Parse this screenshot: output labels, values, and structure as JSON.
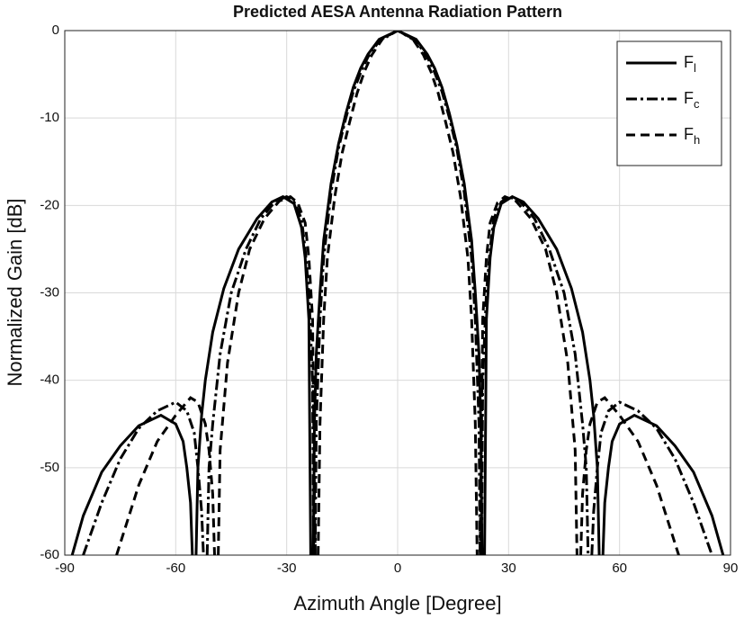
{
  "chart_data": {
    "type": "line",
    "title": "Predicted AESA Antenna Radiation Pattern",
    "x_label": "Azimuth Angle [Degree]",
    "y_label": "Normalized Gain [dB]",
    "xlim": [
      -90,
      90
    ],
    "xticks": [
      -90,
      -60,
      -30,
      0,
      30,
      60,
      90
    ],
    "ylim": [
      -60,
      0
    ],
    "yticks": [
      -60,
      -50,
      -40,
      -30,
      -20,
      -10,
      0
    ],
    "grid": true,
    "legend": "upper right",
    "series": [
      {
        "name": "Fl",
        "color": "#000000",
        "dash": "solid",
        "x": [
          -88,
          -85,
          -80,
          -75,
          -70,
          -64,
          -60,
          -58,
          -57,
          -56,
          -55.5,
          -55,
          -54.5,
          -54,
          -53,
          -52,
          -50,
          -47,
          -43,
          -38,
          -34,
          -31,
          -28,
          -26,
          -25,
          -24,
          -23.5,
          -23.2,
          -22.8,
          -22.5,
          -22,
          -21,
          -20,
          -18,
          -16,
          -14,
          -12,
          -10,
          -8,
          -5,
          0,
          5,
          8,
          10,
          12,
          14,
          16,
          18,
          20,
          21,
          22,
          22.5,
          22.8,
          23.2,
          23.5,
          24,
          25,
          26,
          28,
          31,
          34,
          38,
          43,
          47,
          50,
          52,
          53,
          54,
          54.5,
          55,
          55.5,
          56,
          57,
          58,
          60,
          64,
          70,
          75,
          80,
          85,
          88
        ],
        "values": [
          -60,
          -55.5,
          -50.5,
          -47.5,
          -45.2,
          -44,
          -45,
          -47,
          -50,
          -54,
          -60,
          null,
          -60,
          -50,
          -44,
          -40,
          -34.5,
          -29.5,
          -25,
          -21.5,
          -19.6,
          -19,
          -19.8,
          -22.5,
          -26,
          -33,
          -60,
          null,
          -60,
          -45,
          -37,
          -30,
          -24,
          -17.5,
          -13,
          -9.5,
          -6.5,
          -4.3,
          -2.7,
          -1,
          0,
          -1,
          -2.7,
          -4.3,
          -6.5,
          -9.5,
          -13,
          -17.5,
          -24,
          -30,
          -37,
          -45,
          -60,
          null,
          -60,
          -33,
          -26,
          -22.5,
          -19.8,
          -19,
          -19.6,
          -21.5,
          -25,
          -29.5,
          -34.5,
          -40,
          -44,
          -50,
          -60,
          null,
          -60,
          -54,
          -50,
          -47,
          -45,
          -44,
          -45.2,
          -47.5,
          -50.5,
          -55.5,
          -60
        ]
      },
      {
        "name": "Fc",
        "color": "#000000",
        "dash": "dashdot",
        "x": [
          -85,
          -80,
          -75,
          -70,
          -65,
          -60,
          -57,
          -55,
          -54,
          -53,
          -52.5,
          -52,
          -51.5,
          -51,
          -50,
          -48,
          -45,
          -41,
          -37,
          -33,
          -30,
          -28,
          -26,
          -25,
          -24,
          -23,
          -22.7,
          -22.5,
          -22.3,
          -22,
          -21,
          -20,
          -18,
          -16,
          -14,
          -12,
          -10,
          -8,
          -5,
          0,
          5,
          8,
          10,
          12,
          14,
          16,
          18,
          20,
          21,
          22,
          22.3,
          22.5,
          22.7,
          23,
          24,
          25,
          26,
          28,
          30,
          33,
          37,
          41,
          45,
          48,
          50,
          51,
          51.5,
          52,
          52.5,
          53,
          54,
          55,
          57,
          60,
          65,
          70,
          75,
          80,
          85
        ],
        "values": [
          -60,
          -54,
          -49,
          -45.5,
          -43.5,
          -42.5,
          -43.5,
          -46,
          -50,
          -55,
          -60,
          null,
          -60,
          -50,
          -45,
          -37,
          -30,
          -25,
          -21.5,
          -19.5,
          -19,
          -19.6,
          -21.5,
          -25,
          -30,
          -40,
          -60,
          null,
          -60,
          -45,
          -33,
          -26,
          -18.5,
          -13.5,
          -10,
          -7,
          -4.8,
          -3,
          -1.2,
          0,
          -1.2,
          -3,
          -4.8,
          -7,
          -10,
          -13.5,
          -18.5,
          -26,
          -33,
          -45,
          -60,
          null,
          -60,
          -40,
          -30,
          -25,
          -21.5,
          -19.6,
          -19,
          -19.5,
          -21.5,
          -25,
          -30,
          -37,
          -45,
          -50,
          -60,
          null,
          -60,
          -55,
          -50,
          -46,
          -43.5,
          -42.5,
          -43.5,
          -45.5,
          -49,
          -54,
          -60
        ]
      },
      {
        "name": "Fh",
        "color": "#000000",
        "dash": "dashed",
        "x": [
          -76,
          -70,
          -65,
          -60,
          -56,
          -54,
          -52,
          -51,
          -50,
          -49.5,
          -49,
          -48.5,
          -48,
          -46,
          -43,
          -40,
          -36,
          -32,
          -29,
          -27,
          -25,
          -24,
          -23,
          -22.3,
          -22,
          -21.5,
          -21,
          -20,
          -19,
          -17,
          -15,
          -13,
          -11,
          -9,
          -7,
          -4,
          0,
          4,
          7,
          9,
          11,
          13,
          15,
          17,
          19,
          20,
          21,
          21.5,
          22,
          22.3,
          23,
          24,
          25,
          27,
          29,
          32,
          36,
          40,
          43,
          46,
          48,
          48.5,
          49,
          49.5,
          50,
          51,
          52,
          54,
          56,
          60,
          65,
          70,
          76
        ],
        "values": [
          -60,
          -52,
          -47,
          -44,
          -42,
          -42.5,
          -45,
          -48,
          -53,
          -60,
          null,
          -60,
          -48,
          -38,
          -30,
          -25,
          -21.5,
          -19.5,
          -19,
          -19.7,
          -22,
          -26,
          -33,
          -60,
          null,
          -60,
          -45,
          -33,
          -26,
          -19,
          -14,
          -10.5,
          -7.2,
          -4.7,
          -2.8,
          -0.9,
          0,
          -0.9,
          -2.8,
          -4.7,
          -7.2,
          -10.5,
          -14,
          -19,
          -26,
          -33,
          -45,
          -60,
          null,
          -60,
          -33,
          -26,
          -22,
          -19.7,
          -19,
          -19.5,
          -21.5,
          -25,
          -30,
          -38,
          -48,
          -60,
          null,
          -60,
          -53,
          -48,
          -45,
          -42.5,
          -42,
          -44,
          -47,
          -52,
          -60
        ]
      }
    ]
  }
}
